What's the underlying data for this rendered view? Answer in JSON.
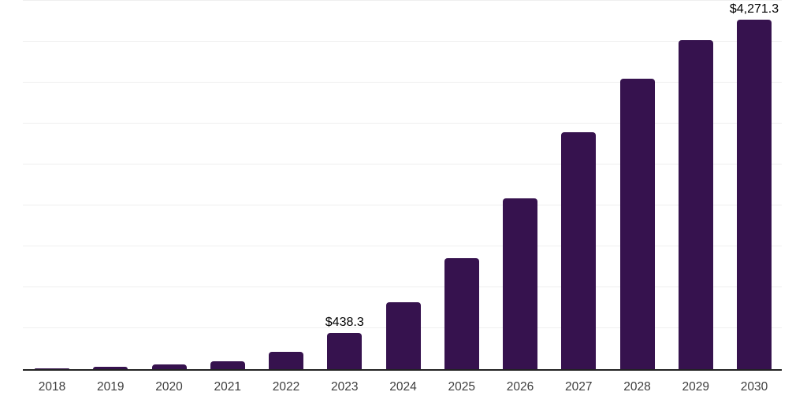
{
  "chart_data": {
    "type": "bar",
    "title": "",
    "xlabel": "",
    "ylabel": "",
    "categories": [
      "2018",
      "2019",
      "2020",
      "2021",
      "2022",
      "2023",
      "2024",
      "2025",
      "2026",
      "2027",
      "2028",
      "2029",
      "2030"
    ],
    "values": [
      10,
      27,
      60,
      98,
      215,
      438.3,
      820,
      1360,
      2090,
      2890,
      3545,
      4015,
      4271.3
    ],
    "data_labels": [
      "",
      "",
      "",
      "",
      "",
      "$438.3",
      "",
      "",
      "",
      "",
      "",
      "",
      "$4,271.3"
    ],
    "labeled_values": {
      "2023": "$438.3",
      "2030": "$4,271.3"
    },
    "ylim": [
      0,
      4500
    ],
    "gridline_step": 500,
    "grid": true,
    "legend": false,
    "y_axis_tick_labels_visible": false,
    "colors": {
      "bar": "#36124E",
      "gridline": "#EFEFEF",
      "axis_line": "#222222",
      "tick_label": "#3D3D3D",
      "data_label": "#000000",
      "background": "#FFFFFF"
    }
  }
}
